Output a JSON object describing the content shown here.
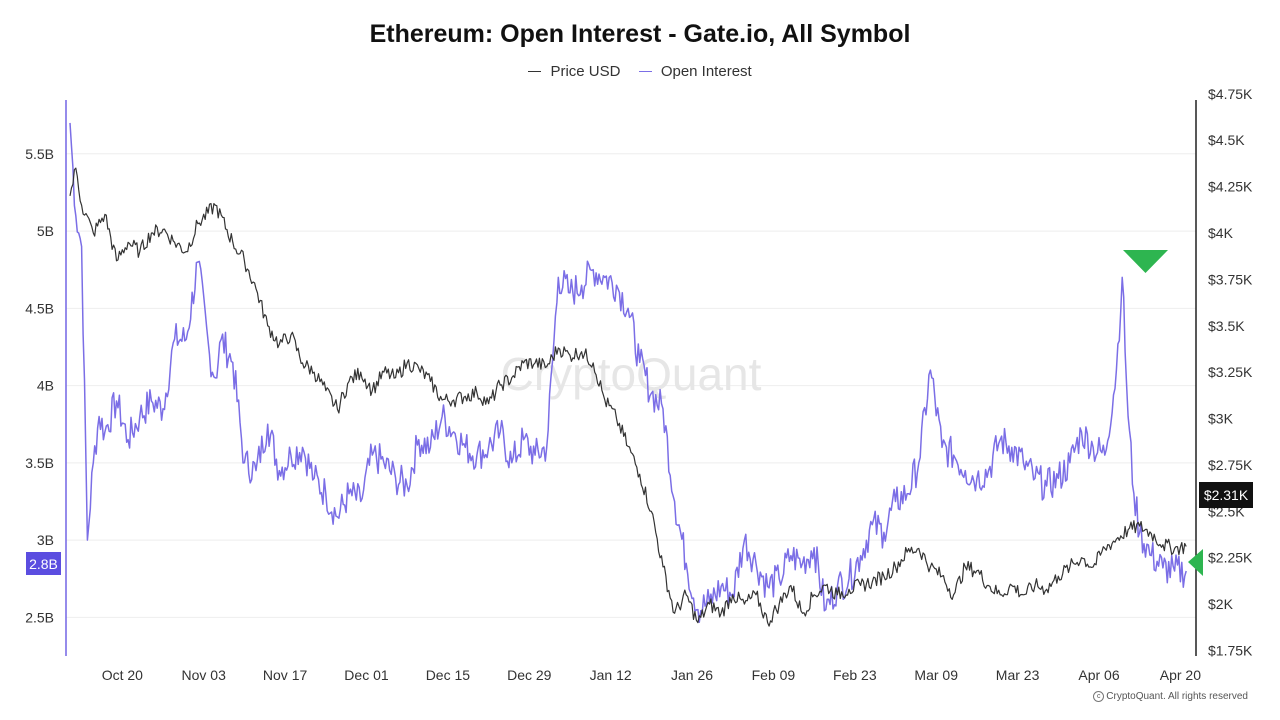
{
  "header": {
    "title": "Ethereum: Open Interest - Gate.io, All Symbol",
    "legend": [
      {
        "label": "Price USD",
        "color": "#333333"
      },
      {
        "label": "Open Interest",
        "color": "#7b6ee6"
      }
    ]
  },
  "watermark": "CryptoQuant",
  "credit": "CryptoQuant. All rights reserved",
  "badges": {
    "left_current": "2.8B",
    "right_current": "$2.31K"
  },
  "chart_data": {
    "type": "line",
    "title": "Ethereum: Open Interest - Gate.io, All Symbol",
    "x_ticks": [
      "Oct 20",
      "Nov 03",
      "Nov 17",
      "Dec 01",
      "Dec 15",
      "Dec 29",
      "Jan 12",
      "Jan 26",
      "Feb 09",
      "Feb 23",
      "Mar 09",
      "Mar 23",
      "Apr 06",
      "Apr 20"
    ],
    "x_range": [
      "Oct 11",
      "Apr 21"
    ],
    "left_axis": {
      "ticks": [
        "2.5B",
        "3B",
        "3.5B",
        "4B",
        "4.5B",
        "5B",
        "5.5B"
      ],
      "ylim": [
        2.25,
        5.9
      ],
      "unit": "B"
    },
    "right_axis": {
      "ticks": [
        "$1.75K",
        "$2K",
        "$2.25K",
        "$2.5K",
        "$2.75K",
        "$3K",
        "$3.25K",
        "$3.5K",
        "$3.75K",
        "$4K",
        "$4.25K",
        "$4.5K",
        "$4.75K"
      ],
      "ylim": [
        1.72,
        4.76
      ],
      "unit": "K USD"
    },
    "grid": true,
    "legend_position": "top-center",
    "series": [
      {
        "name": "Price USD",
        "axis": "right",
        "color": "#333333",
        "x": [
          0,
          1,
          2,
          4,
          6,
          8,
          10,
          12,
          14,
          16,
          18,
          20,
          22,
          25,
          28,
          30,
          32,
          34,
          36,
          38,
          40,
          42,
          44,
          46,
          48,
          50,
          52,
          54,
          56,
          58,
          60,
          62,
          64,
          66,
          68,
          70,
          72,
          74,
          76,
          78,
          80,
          82,
          84,
          86,
          88,
          90,
          92,
          94,
          96,
          98,
          100,
          102,
          104,
          106,
          108,
          110,
          112,
          114,
          116,
          118,
          120,
          122,
          124,
          126,
          128,
          130,
          132,
          134,
          136,
          138,
          140,
          142,
          144,
          146,
          148,
          150,
          152,
          154,
          156,
          158,
          160,
          162,
          164,
          166,
          168,
          170,
          172,
          174,
          176,
          178,
          180,
          182,
          184,
          186,
          188,
          190,
          192
        ],
        "values": [
          4.2,
          4.35,
          4.15,
          4.0,
          4.1,
          3.85,
          3.95,
          3.9,
          4.0,
          4.02,
          3.95,
          3.9,
          4.05,
          4.15,
          3.95,
          3.85,
          3.7,
          3.5,
          3.4,
          3.45,
          3.3,
          3.25,
          3.15,
          3.05,
          3.2,
          3.25,
          3.15,
          3.25,
          3.22,
          3.3,
          3.27,
          3.2,
          3.1,
          3.1,
          3.12,
          3.14,
          3.08,
          3.18,
          3.22,
          3.3,
          3.3,
          3.28,
          3.38,
          3.34,
          3.36,
          3.3,
          3.1,
          3.0,
          2.85,
          2.7,
          2.5,
          2.2,
          1.95,
          2.05,
          1.9,
          2.0,
          1.95,
          2.05,
          2.0,
          2.05,
          1.9,
          2.0,
          2.1,
          1.95,
          2.05,
          2.1,
          2.05,
          2.08,
          2.1,
          2.12,
          2.15,
          2.2,
          2.28,
          2.3,
          2.2,
          2.15,
          2.05,
          2.2,
          2.18,
          2.1,
          2.05,
          2.1,
          2.05,
          2.1,
          2.08,
          2.15,
          2.2,
          2.25,
          2.2,
          2.3,
          2.35,
          2.4,
          2.42,
          2.38,
          2.32,
          2.3,
          2.31
        ]
      },
      {
        "name": "Open Interest",
        "axis": "left",
        "color": "#7b6ee6",
        "x": [
          0,
          1,
          2,
          3,
          4,
          5,
          6,
          8,
          10,
          12,
          14,
          16,
          18,
          20,
          22,
          24,
          25,
          26,
          28,
          30,
          32,
          34,
          36,
          38,
          40,
          42,
          44,
          46,
          48,
          50,
          52,
          54,
          56,
          58,
          60,
          62,
          64,
          66,
          68,
          70,
          72,
          74,
          76,
          78,
          80,
          82,
          84,
          86,
          88,
          90,
          92,
          94,
          96,
          98,
          100,
          102,
          104,
          106,
          108,
          110,
          112,
          114,
          116,
          118,
          120,
          122,
          124,
          126,
          128,
          130,
          132,
          134,
          136,
          138,
          140,
          142,
          144,
          146,
          148,
          150,
          152,
          154,
          156,
          158,
          160,
          162,
          164,
          166,
          168,
          170,
          172,
          174,
          176,
          178,
          180,
          181,
          182,
          183,
          184,
          186,
          188,
          190,
          192
        ],
        "values": [
          5.7,
          5.1,
          4.9,
          3.0,
          3.5,
          3.8,
          3.7,
          3.9,
          3.65,
          3.8,
          3.9,
          3.85,
          4.3,
          4.3,
          4.8,
          4.2,
          4.05,
          4.3,
          4.15,
          3.5,
          3.45,
          3.75,
          3.45,
          3.55,
          3.6,
          3.4,
          3.3,
          3.15,
          3.3,
          3.25,
          3.55,
          3.5,
          3.4,
          3.35,
          3.65,
          3.6,
          3.8,
          3.7,
          3.6,
          3.55,
          3.6,
          3.7,
          3.5,
          3.65,
          3.55,
          3.6,
          4.7,
          4.6,
          4.65,
          4.75,
          4.7,
          4.65,
          4.5,
          4.15,
          3.95,
          3.85,
          3.25,
          2.85,
          2.55,
          2.6,
          2.7,
          2.65,
          3.0,
          2.85,
          2.7,
          2.75,
          2.9,
          2.85,
          2.95,
          2.55,
          2.7,
          2.75,
          2.9,
          3.1,
          3.05,
          3.25,
          3.3,
          3.5,
          4.1,
          3.6,
          3.55,
          3.45,
          3.4,
          3.45,
          3.65,
          3.6,
          3.5,
          3.4,
          3.35,
          3.4,
          3.5,
          3.7,
          3.6,
          3.55,
          4.1,
          4.7,
          3.8,
          3.3,
          3.05,
          2.9,
          2.82,
          2.8,
          2.8
        ]
      }
    ],
    "annotations": [
      {
        "type": "marker",
        "shape": "triangle-down",
        "color": "#2eb550",
        "label": "OI peak"
      },
      {
        "type": "marker",
        "shape": "triangle-left",
        "color": "#2eb550",
        "label": "current"
      }
    ]
  },
  "colors": {
    "oi": "#7b6ee6",
    "price": "#333333",
    "marker": "#2eb550",
    "left_badge": "#5b4de0",
    "right_badge": "#111111",
    "grid": "#eeeeee"
  }
}
